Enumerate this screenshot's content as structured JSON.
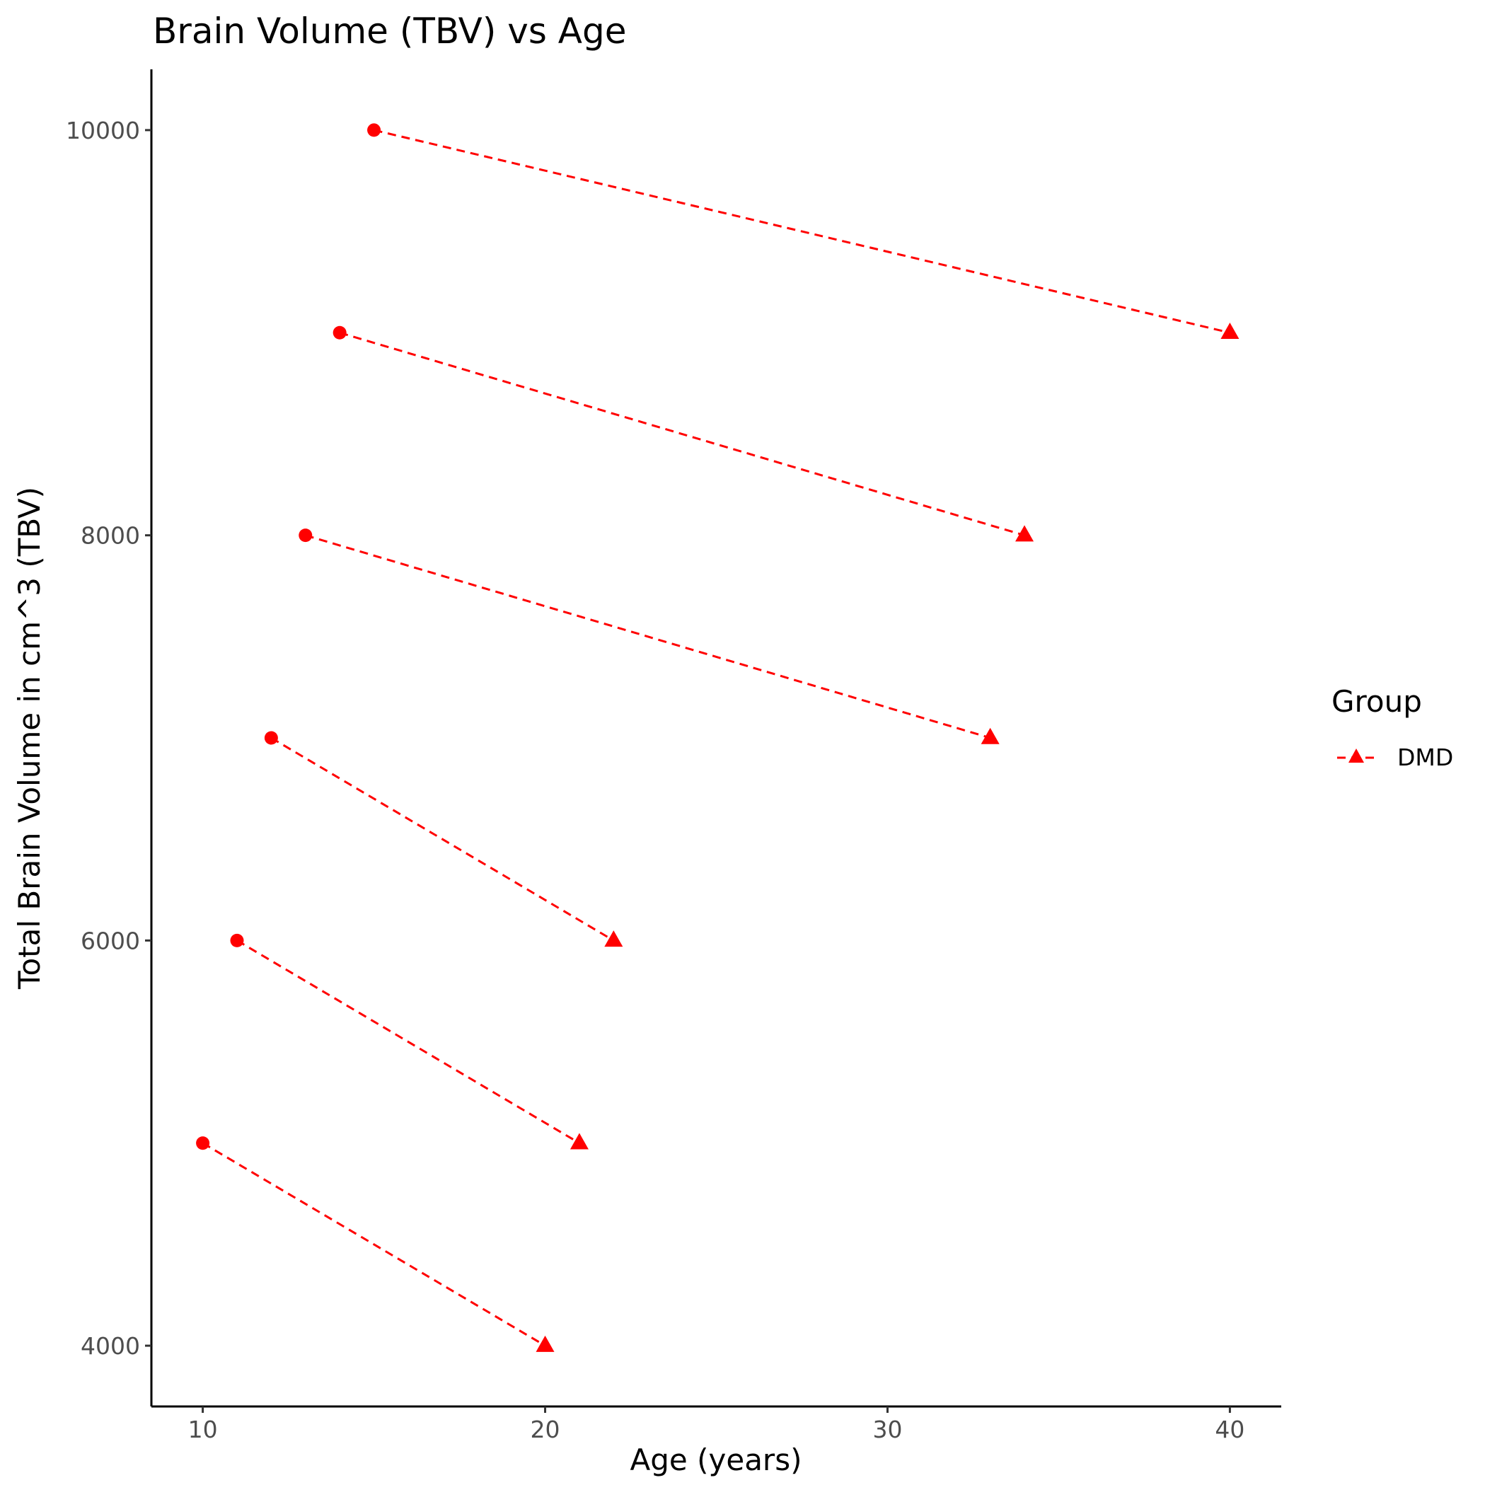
{
  "chart_data": {
    "type": "line",
    "title": "Brain Volume (TBV) vs Age",
    "xlabel": "Age (years)",
    "ylabel": "Total Brain Volume in cm^3 (TBV)",
    "xlim": [
      8.5,
      41.5
    ],
    "ylim": [
      3700,
      10300
    ],
    "xticks": [
      10,
      20,
      30,
      40
    ],
    "yticks": [
      4000,
      6000,
      8000,
      10000
    ],
    "grid": false,
    "legend": {
      "title": "Group",
      "position": "right",
      "entries": [
        "DMD"
      ]
    },
    "series": [
      {
        "name": "DMD",
        "color": "#ff0000",
        "line_style": "dashed",
        "segments": [
          {
            "start": {
              "x": 10,
              "y": 5000,
              "marker": "circle"
            },
            "end": {
              "x": 20,
              "y": 4000,
              "marker": "triangle"
            }
          },
          {
            "start": {
              "x": 11,
              "y": 6000,
              "marker": "circle"
            },
            "end": {
              "x": 21,
              "y": 5000,
              "marker": "triangle"
            }
          },
          {
            "start": {
              "x": 12,
              "y": 7000,
              "marker": "circle"
            },
            "end": {
              "x": 22,
              "y": 6000,
              "marker": "triangle"
            }
          },
          {
            "start": {
              "x": 13,
              "y": 8000,
              "marker": "circle"
            },
            "end": {
              "x": 33,
              "y": 7000,
              "marker": "triangle"
            }
          },
          {
            "start": {
              "x": 14,
              "y": 9000,
              "marker": "circle"
            },
            "end": {
              "x": 34,
              "y": 8000,
              "marker": "triangle"
            }
          },
          {
            "start": {
              "x": 15,
              "y": 10000,
              "marker": "circle"
            },
            "end": {
              "x": 40,
              "y": 9000,
              "marker": "triangle"
            }
          }
        ]
      }
    ]
  }
}
